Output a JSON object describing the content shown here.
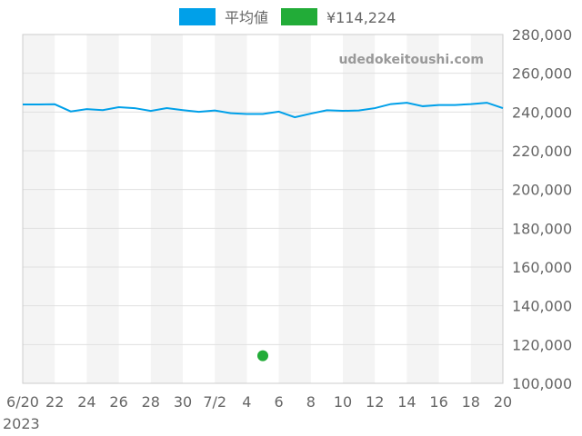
{
  "chart_data": {
    "type": "line",
    "watermark": "udedokeitoushi.com",
    "legend": [
      {
        "name": "平均値",
        "color": "#00a0e9"
      },
      {
        "name": "¥114,224",
        "color": "#22ac38"
      }
    ],
    "legend_placement": "top",
    "ylim": [
      100000,
      280000
    ],
    "yticks": [
      100000,
      120000,
      140000,
      160000,
      180000,
      200000,
      220000,
      240000,
      260000,
      280000
    ],
    "ytick_labels": [
      "100,000",
      "120,000",
      "140,000",
      "160,000",
      "180,000",
      "200,000",
      "220,000",
      "240,000",
      "260,000",
      "280,000"
    ],
    "xlim": [
      "2023-06-20",
      "2023-07-20"
    ],
    "xtick_labels": [
      "6/20",
      "22",
      "24",
      "26",
      "28",
      "30",
      "7/2",
      "4",
      "6",
      "8",
      "10",
      "12",
      "14",
      "16",
      "18",
      "20"
    ],
    "xlabel_year": "2023",
    "grid": true,
    "series": [
      {
        "name": "平均値",
        "color": "#00a0e9",
        "x": [
          "06-20",
          "06-21",
          "06-22",
          "06-23",
          "06-24",
          "06-25",
          "06-26",
          "06-27",
          "06-28",
          "06-29",
          "06-30",
          "07-01",
          "07-02",
          "07-03",
          "07-04",
          "07-05",
          "07-06",
          "07-07",
          "07-08",
          "07-09",
          "07-10",
          "07-11",
          "07-12",
          "07-13",
          "07-14",
          "07-15",
          "07-16",
          "07-17",
          "07-18",
          "07-19",
          "07-20"
        ],
        "values": [
          243900,
          243900,
          244000,
          240300,
          241500,
          241000,
          242500,
          242000,
          240600,
          242000,
          241000,
          240100,
          240800,
          239400,
          239000,
          239000,
          240200,
          237300,
          239200,
          240900,
          240600,
          240800,
          242000,
          244100,
          244800,
          243000,
          243600,
          243600,
          244100,
          244800,
          242000
        ]
      },
      {
        "name": "¥114,224",
        "color": "#22ac38",
        "type": "point",
        "x": [
          "07-05"
        ],
        "values": [
          114224
        ]
      }
    ]
  }
}
